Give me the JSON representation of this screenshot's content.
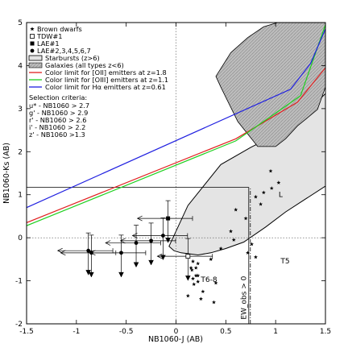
{
  "chart_data": {
    "type": "scatter",
    "xlabel": "NB1060-J (AB)",
    "ylabel": "NB1060-Ks (AB)",
    "xlim": [
      -1.5,
      1.5
    ],
    "ylim": [
      -2,
      5
    ],
    "xticks": [
      "-1.5",
      "-1",
      "-0.5",
      "0",
      "0.5",
      "1",
      "1.5"
    ],
    "xtick_values": [
      -1.5,
      -1,
      -0.5,
      0,
      0.5,
      1,
      1.5
    ],
    "yticks": [
      "-2",
      "-1",
      "0",
      "1",
      "2",
      "3",
      "4",
      "5"
    ],
    "ytick_values": [
      -2,
      -1,
      0,
      1,
      2,
      3,
      4,
      5
    ],
    "legend_position": "top-left",
    "legend": [
      {
        "label": "Brown dwarfs",
        "marker": "star"
      },
      {
        "label": "TDW#1",
        "marker": "open-square"
      },
      {
        "label": "LAE#1",
        "marker": "filled-square"
      },
      {
        "label": "LAE#2,3,4,5,6,7",
        "marker": "filled-circle"
      },
      {
        "label": "Starbursts (z>6)",
        "marker": "open-region"
      },
      {
        "label": "Galaxies (all types z<6)",
        "marker": "hatched-region"
      },
      {
        "label": "Color limit for [OII] emitters at z=1.8",
        "marker": "line",
        "color": "#e02020"
      },
      {
        "label": "Color limit for [OIII] emitters at z=1.1",
        "marker": "line",
        "color": "#20d020"
      },
      {
        "label": "Color limit for Hα emitters at z=0.61",
        "marker": "line",
        "color": "#2020e0"
      }
    ],
    "selection_title": "Selection criteria:",
    "selection_criteria": [
      "u* - NB1060 > 2.7",
      "g' - NB1060 > 2.9",
      "r' - NB1060 > 2.6",
      "i' - NB1060 > 2.2",
      "z' - NB1060 >1.3"
    ],
    "annotations": {
      "L": "L",
      "T5": "T5",
      "T6_8": "T6-8",
      "ew": "EW_obs > 0"
    },
    "color_lines": [
      {
        "name": "Color limit for [OII] emitters at z=1.8",
        "color": "#e02020",
        "x": [
          -1.5,
          0.6,
          1.22,
          1.5
        ],
        "y": [
          0.35,
          2.3,
          3.15,
          3.95
        ]
      },
      {
        "name": "Color limit for [OIII] emitters at z=1.1",
        "color": "#20d020",
        "x": [
          -1.5,
          0.6,
          1.25,
          1.5
        ],
        "y": [
          0.28,
          2.25,
          3.3,
          4.95
        ]
      },
      {
        "name": "Color limit for Hα emitters at z=0.61",
        "color": "#2020e0",
        "x": [
          -1.5,
          1.15,
          1.35,
          1.5
        ],
        "y": [
          0.7,
          3.45,
          4.05,
          4.85
        ]
      }
    ],
    "selection_line": {
      "x": [
        -1.5,
        0.73,
        0.73
      ],
      "y": [
        1.17,
        1.17,
        -2
      ]
    },
    "ew_line": {
      "x": 0.73,
      "y": [
        -2,
        1.17
      ]
    },
    "starburst_region": {
      "x": [
        -0.07,
        0.12,
        0.45,
        0.75,
        1.05,
        1.28,
        1.5,
        1.5,
        1.1,
        0.9,
        0.68,
        0.5,
        0.35,
        0.22,
        0.05,
        -0.02,
        -0.07
      ],
      "y": [
        -0.2,
        0.75,
        1.7,
        2.1,
        2.45,
        2.85,
        3.35,
        1.2,
        0.6,
        0.25,
        -0.1,
        -0.25,
        -0.35,
        -0.4,
        -0.35,
        -0.3,
        -0.2
      ]
    },
    "galaxy_region": {
      "x": [
        0.4,
        0.55,
        0.72,
        0.88,
        1.02,
        1.18,
        1.3,
        1.42,
        1.5,
        1.5,
        1.42,
        1.3,
        1.22,
        1.1,
        1.0,
        0.82,
        0.62,
        0.45,
        0.4
      ],
      "y": [
        3.75,
        4.3,
        4.65,
        4.9,
        5.0,
        5.0,
        5.0,
        5.0,
        5.0,
        3.5,
        2.98,
        2.75,
        2.6,
        2.3,
        2.12,
        2.12,
        2.7,
        3.5,
        3.75
      ]
    },
    "brown_dwarfs": {
      "x": [
        0.95,
        1.03,
        0.96,
        0.88,
        0.8,
        0.85,
        0.6,
        0.7,
        0.55,
        0.58,
        0.76,
        0.8,
        0.72,
        0.45,
        0.35,
        0.22,
        0.2,
        0.16,
        0.2,
        0.17,
        0.22,
        0.18,
        0.22,
        0.15,
        0.17,
        0.4,
        0.12,
        0.27,
        0.25,
        0.38
      ],
      "y": [
        1.55,
        1.28,
        1.15,
        1.05,
        0.95,
        0.78,
        0.65,
        0.45,
        0.15,
        -0.05,
        -0.15,
        -0.45,
        -0.35,
        -0.25,
        -0.5,
        -0.6,
        -0.7,
        -0.75,
        -0.88,
        -0.95,
        -1.02,
        -1.08,
        -0.88,
        -0.7,
        -0.55,
        -1.05,
        -1.35,
        -1.25,
        -1.42,
        -1.5
      ]
    },
    "tdw1": {
      "x": 0.12,
      "y": -0.43
    },
    "lae1": {
      "x": -0.08,
      "y": 0.45
    },
    "laes": [
      {
        "x": -0.13,
        "y": 0.05
      },
      {
        "x": -0.25,
        "y": -0.07
      },
      {
        "x": -0.4,
        "y": -0.12
      },
      {
        "x": -0.55,
        "y": -0.35
      },
      {
        "x": -0.85,
        "y": -0.35
      },
      {
        "x": -0.88,
        "y": -0.3
      }
    ]
  }
}
